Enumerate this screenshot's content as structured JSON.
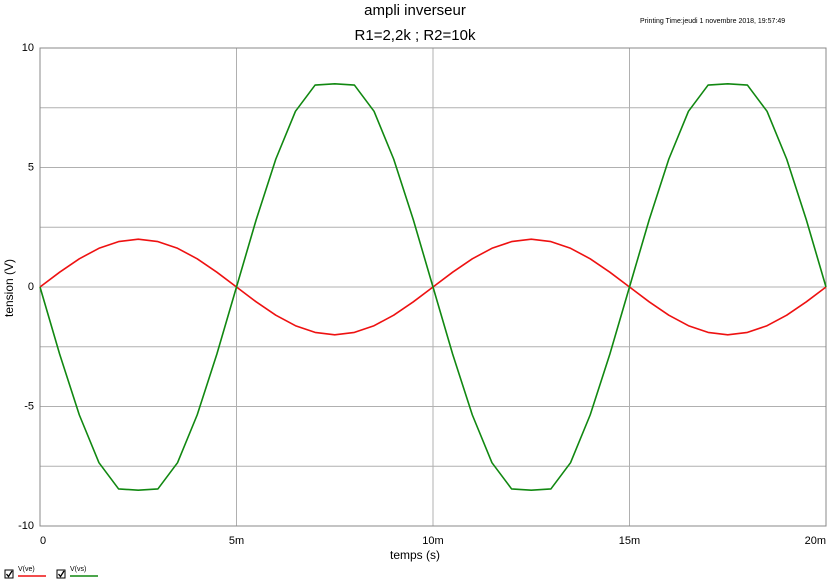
{
  "chart_data": {
    "type": "line",
    "title": "ampli inverseur",
    "subtitle": "R1=2,2k ; R2=10k",
    "annotation": "Printing Time:jeudi 1 novembre 2018, 19:57:49",
    "x_label": "temps (s)",
    "y_label": "tension (V)",
    "x": [
      0,
      0.0005,
      0.001,
      0.0015,
      0.002,
      0.0025,
      0.003,
      0.0035,
      0.004,
      0.0045,
      0.005,
      0.0055,
      0.006,
      0.0065,
      0.007,
      0.0075,
      0.008,
      0.0085,
      0.009,
      0.0095,
      0.01,
      0.0105,
      0.011,
      0.0115,
      0.012,
      0.0125,
      0.013,
      0.0135,
      0.014,
      0.0145,
      0.015,
      0.0155,
      0.016,
      0.0165,
      0.017,
      0.0175,
      0.018,
      0.0185,
      0.019,
      0.0195,
      0.02
    ],
    "series": [
      {
        "name": "V(ve)",
        "color": "#ee1111",
        "values": [
          0,
          0.62,
          1.18,
          1.62,
          1.9,
          2,
          1.9,
          1.62,
          1.18,
          0.62,
          0,
          -0.62,
          -1.18,
          -1.62,
          -1.9,
          -2,
          -1.9,
          -1.62,
          -1.18,
          -0.62,
          0,
          0.62,
          1.18,
          1.62,
          1.9,
          2,
          1.9,
          1.62,
          1.18,
          0.62,
          0,
          -0.62,
          -1.18,
          -1.62,
          -1.9,
          -2,
          -1.9,
          -1.62,
          -1.18,
          -0.62,
          0
        ]
      },
      {
        "name": "V(vs)",
        "color": "#118811",
        "values": [
          0,
          -2.81,
          -5.35,
          -7.35,
          -8.45,
          -8.5,
          -8.45,
          -7.35,
          -5.35,
          -2.81,
          0,
          2.81,
          5.35,
          7.35,
          8.45,
          8.5,
          8.45,
          7.35,
          5.35,
          2.81,
          0,
          -2.81,
          -5.35,
          -7.35,
          -8.45,
          -8.5,
          -8.45,
          -7.35,
          -5.35,
          -2.81,
          0,
          2.81,
          5.35,
          7.35,
          8.45,
          8.5,
          8.45,
          7.35,
          5.35,
          2.81,
          0
        ]
      }
    ],
    "xlim": [
      0,
      0.02
    ],
    "xticks": [
      0,
      {
        "value": 0.005,
        "label": "5m"
      },
      {
        "value": 0.01,
        "label": "10m"
      },
      {
        "value": 0.015,
        "label": "15m"
      },
      {
        "value": 0.02,
        "label": "20m"
      }
    ],
    "ylim": [
      -10,
      10
    ],
    "yticks": [
      10,
      5,
      0,
      -5,
      -10
    ],
    "y_minor_ticks": [
      7.5,
      2.5,
      -2.5,
      -7.5
    ],
    "grid": true
  }
}
